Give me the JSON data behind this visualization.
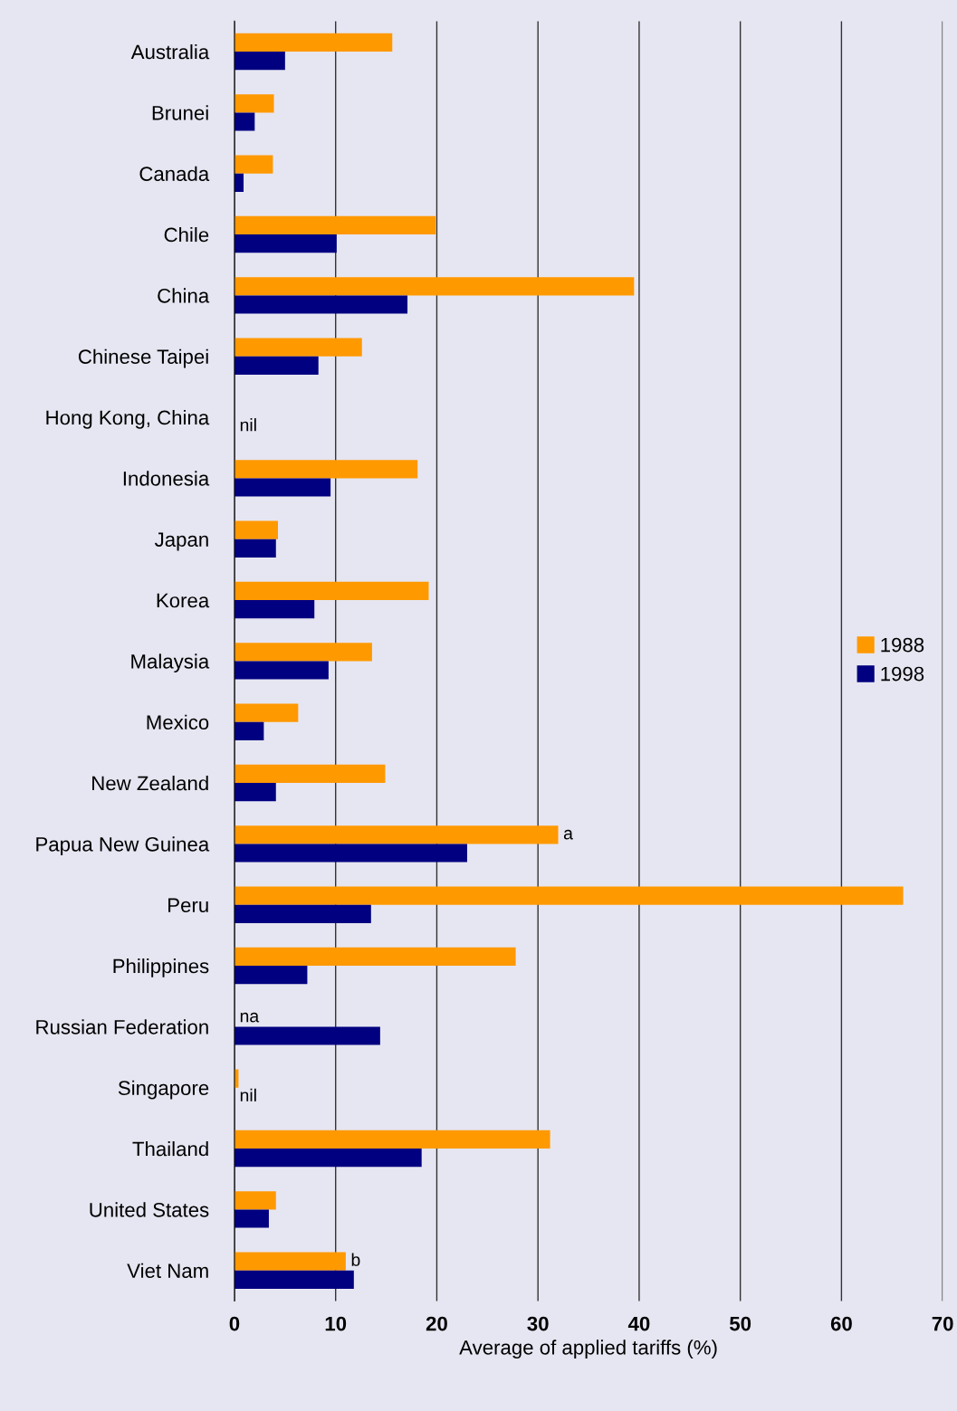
{
  "chart_data": {
    "type": "bar",
    "orientation": "horizontal",
    "xlabel": "Average of applied tariffs (%)",
    "categories": [
      "Australia",
      "Brunei",
      "Canada",
      "Chile",
      "China",
      "Chinese Taipei",
      "Hong Kong, China",
      "Indonesia",
      "Japan",
      "Korea",
      "Malaysia",
      "Mexico",
      "New Zealand",
      "Papua New Guinea",
      "Peru",
      "Philippines",
      "Russian Federation",
      "Singapore",
      "Thailand",
      "United States",
      "Viet Nam"
    ],
    "series": [
      {
        "name": "1988",
        "color": "#ff9900",
        "values": [
          15.6,
          3.9,
          3.8,
          19.9,
          39.5,
          12.6,
          0,
          18.1,
          4.3,
          19.2,
          13.6,
          6.3,
          14.9,
          32.0,
          66.1,
          27.8,
          null,
          0.4,
          31.2,
          4.1,
          11.0
        ],
        "value_labels": [
          null,
          null,
          null,
          null,
          null,
          null,
          null,
          null,
          null,
          null,
          null,
          null,
          null,
          "a",
          null,
          null,
          "na",
          null,
          null,
          null,
          "b"
        ]
      },
      {
        "name": "1998",
        "color": "#000080",
        "values": [
          5.0,
          2.0,
          0.9,
          10.1,
          17.1,
          8.3,
          0,
          9.5,
          4.1,
          7.9,
          9.3,
          2.9,
          4.1,
          23.0,
          13.5,
          7.2,
          14.4,
          0,
          18.5,
          3.4,
          11.8
        ],
        "value_labels": [
          null,
          null,
          null,
          null,
          null,
          null,
          "nil",
          null,
          null,
          null,
          null,
          null,
          null,
          null,
          null,
          null,
          null,
          "nil",
          null,
          null,
          null
        ]
      }
    ],
    "xlim": [
      0,
      70
    ],
    "xticks": [
      0,
      10,
      20,
      30,
      40,
      50,
      60,
      70
    ],
    "grid": "x",
    "legend": "right"
  }
}
